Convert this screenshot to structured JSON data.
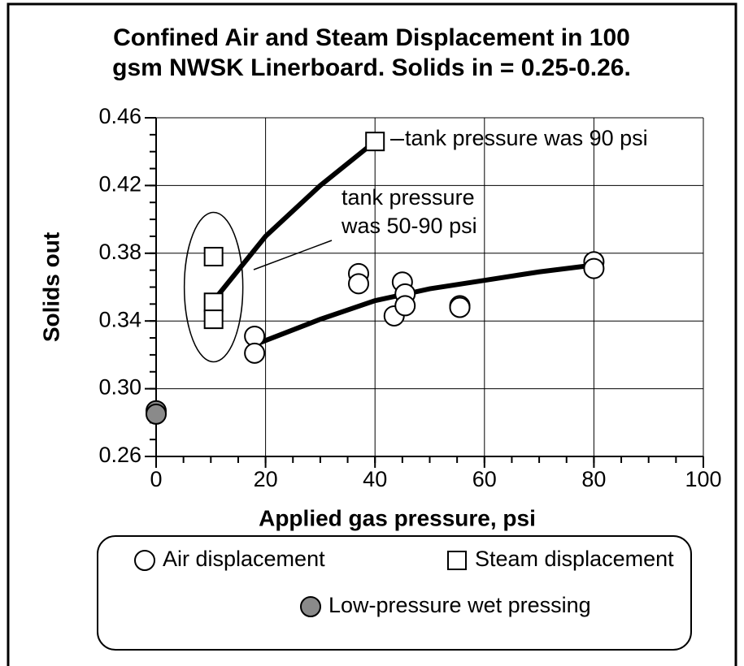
{
  "chart_data": {
    "type": "scatter",
    "title": "Confined Air and Steam Displacement in 100 gsm NWSK Linerboard. Solids in = 0.25-0.26.",
    "x_label": "Applied gas pressure, psi",
    "y_label": "Solids out",
    "xlim": [
      0,
      100
    ],
    "xticks": [
      0,
      20,
      40,
      60,
      80,
      100
    ],
    "ylim": [
      0.26,
      0.46
    ],
    "yticks": [
      0.26,
      {
        "value": 0.3,
        "label": "0.30"
      },
      0.34,
      0.38,
      0.42,
      0.46
    ],
    "grid": true,
    "legend": "bottom",
    "series": [
      {
        "name": "Air displacement",
        "marker": "circle",
        "color": "#ffffff",
        "x": [
          18,
          18,
          37,
          37,
          43.5,
          45,
          45.5,
          45.5,
          55.5,
          55.5,
          80,
          80
        ],
        "values": [
          0.331,
          0.321,
          0.368,
          0.362,
          0.343,
          0.363,
          0.356,
          0.349,
          0.349,
          0.348,
          0.375,
          0.371
        ]
      },
      {
        "name": "Steam displacement",
        "marker": "square",
        "color": "#ffffff",
        "x": [
          10.5,
          10.5,
          10.5,
          40
        ],
        "values": [
          0.378,
          0.351,
          0.341,
          0.446
        ]
      },
      {
        "name": "Low-pressure wet pressing",
        "marker": "circle",
        "color": "#8a8a8a",
        "x": [
          0,
          0
        ],
        "values": [
          0.287,
          0.285
        ]
      }
    ],
    "fit_lines": [
      {
        "x": [
          18,
          30,
          40,
          50,
          60,
          70,
          80
        ],
        "values": [
          0.326,
          0.341,
          0.352,
          0.359,
          0.364,
          0.369,
          0.373
        ]
      },
      {
        "x": [
          10.5,
          20,
          30,
          40
        ],
        "values": [
          0.352,
          0.39,
          0.42,
          0.446
        ]
      }
    ],
    "annotations": [
      "tank pressure was 90 psi",
      "tank pressure",
      "was 50-90 psi"
    ]
  }
}
